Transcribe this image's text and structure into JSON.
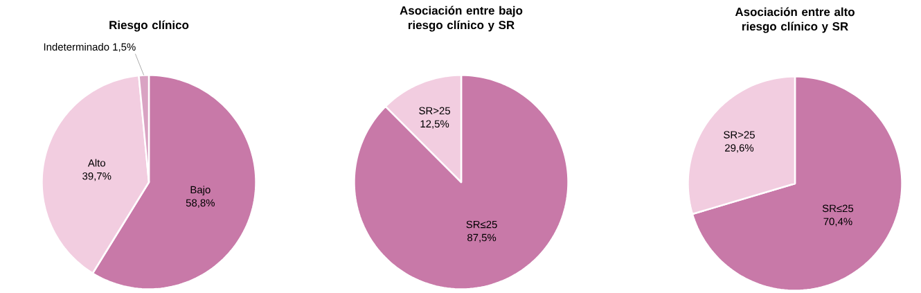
{
  "chart_data": [
    {
      "type": "pie",
      "title": "Riesgo clínico",
      "categories": [
        "Bajo",
        "Alto",
        "Indeterminado"
      ],
      "values": [
        58.8,
        39.7,
        1.5
      ],
      "value_labels": [
        "58,8%",
        "39,7%",
        "1,5%"
      ],
      "colors": [
        "#c879a8",
        "#f2cde0",
        "#d9a3c3"
      ]
    },
    {
      "type": "pie",
      "title": "Asociación entre bajo riesgo clínico y SR",
      "categories": [
        "SR≤25",
        "SR>25"
      ],
      "values": [
        87.5,
        12.5
      ],
      "value_labels": [
        "87,5%",
        "12,5%"
      ],
      "colors": [
        "#c879a8",
        "#f2cde0"
      ]
    },
    {
      "type": "pie",
      "title": "Asociación entre alto riesgo clínico y SR",
      "categories": [
        "SR≤25",
        "SR>25"
      ],
      "values": [
        70.4,
        29.6
      ],
      "value_labels": [
        "70,4%",
        "29,6%"
      ],
      "colors": [
        "#c879a8",
        "#f2cde0"
      ]
    }
  ]
}
